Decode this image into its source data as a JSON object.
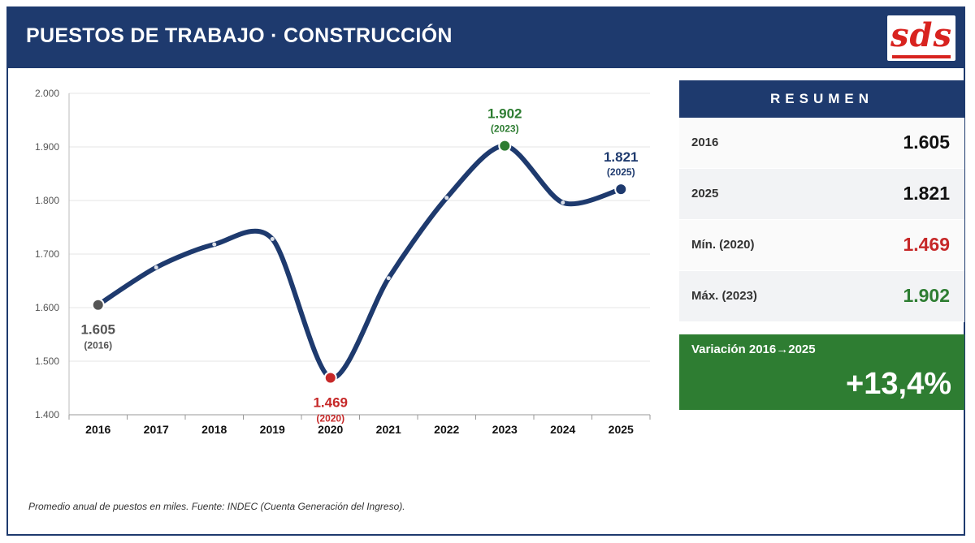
{
  "header": {
    "title": "PUESTOS DE TRABAJO · CONSTRUCCIÓN",
    "logo_text": "sds"
  },
  "chart_data": {
    "type": "line",
    "title": "PUESTOS DE TRABAJO · CONSTRUCCIÓN",
    "categories": [
      "2016",
      "2017",
      "2018",
      "2019",
      "2020",
      "2021",
      "2022",
      "2023",
      "2024",
      "2025"
    ],
    "values": [
      1605,
      1675,
      1718,
      1728,
      1469,
      1655,
      1805,
      1902,
      1796,
      1821
    ],
    "ylim": [
      1400,
      2000
    ],
    "yticks": [
      1400,
      1500,
      1600,
      1700,
      1800,
      1900,
      2000
    ],
    "ytick_labels": [
      "1.400",
      "1.500",
      "1.600",
      "1.700",
      "1.800",
      "1.900",
      "2.000"
    ],
    "xlabel": "",
    "ylabel": "",
    "grid": true,
    "line_color": "#1e3a6e",
    "annotations": [
      {
        "index": 0,
        "value_label": "1.605",
        "year_label": "(2016)",
        "color": "#555555",
        "position": "below"
      },
      {
        "index": 4,
        "value_label": "1.469",
        "year_label": "(2020)",
        "color": "#c62828",
        "position": "below"
      },
      {
        "index": 7,
        "value_label": "1.902",
        "year_label": "(2023)",
        "color": "#2e7d32",
        "position": "above"
      },
      {
        "index": 9,
        "value_label": "1.821",
        "year_label": "(2025)",
        "color": "#1e3a6e",
        "position": "above"
      }
    ]
  },
  "summary": {
    "title": "RESUMEN",
    "rows": [
      {
        "label": "2016",
        "value": "1.605",
        "color": "#111111"
      },
      {
        "label": "2025",
        "value": "1.821",
        "color": "#111111"
      },
      {
        "label": "Mín. (2020)",
        "value": "1.469",
        "color": "#c62828"
      },
      {
        "label": "Máx. (2023)",
        "value": "1.902",
        "color": "#2e7d32"
      }
    ],
    "variation_label": "Variación 2016→2025",
    "variation_value": "+13,4%",
    "variation_color": "#2e7d32"
  },
  "footnote": "Promedio anual de puestos en miles. Fuente: INDEC (Cuenta Generación del Ingreso)."
}
